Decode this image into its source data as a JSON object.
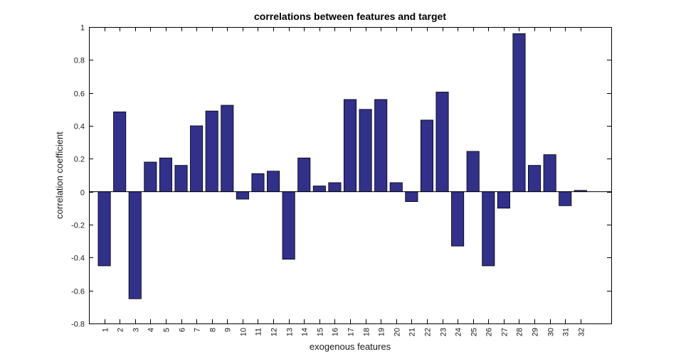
{
  "chart_data": {
    "type": "bar",
    "title": "correlations between features and target",
    "xlabel": "exogenous features",
    "ylabel": "correlation coefficient",
    "categories": [
      "1",
      "2",
      "3",
      "4",
      "5",
      "6",
      "7",
      "8",
      "9",
      "10",
      "11",
      "12",
      "13",
      "14",
      "15",
      "16",
      "17",
      "18",
      "19",
      "20",
      "21",
      "22",
      "23",
      "24",
      "25",
      "26",
      "27",
      "28",
      "29",
      "30",
      "31",
      "32"
    ],
    "values": [
      -0.45,
      0.485,
      -0.65,
      0.18,
      0.205,
      0.16,
      0.4,
      0.49,
      0.525,
      -0.045,
      0.11,
      0.125,
      -0.41,
      0.205,
      0.035,
      0.055,
      0.56,
      0.5,
      0.56,
      0.055,
      -0.06,
      0.435,
      0.605,
      -0.33,
      0.245,
      -0.45,
      -0.1,
      0.96,
      0.16,
      0.225,
      -0.085,
      0.008
    ],
    "xlim": [
      0,
      34
    ],
    "ylim": [
      -0.8,
      1
    ],
    "yticks": [
      -0.8,
      -0.6,
      -0.4,
      -0.2,
      0,
      0.2,
      0.4,
      0.6,
      0.8,
      1
    ],
    "ytick_labels": [
      "-0.8",
      "-0.6",
      "-0.4",
      "-0.2",
      "0",
      "0.2",
      "0.4",
      "0.6",
      "0.8",
      "1"
    ],
    "grid": false,
    "bar_color": "#31308b",
    "bar_edge_color": "#000000"
  }
}
